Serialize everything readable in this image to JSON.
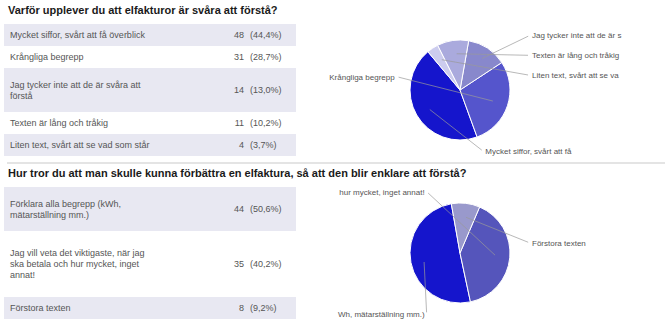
{
  "chart_data": [
    {
      "type": "pie",
      "title": "Varför upplever du att elfakturor är svåra att förstå?",
      "categories": [
        "Mycket siffor, svårt att få överblick",
        "Krångliga begrepp",
        "Jag tycker inte att de är svåra att\nförstå",
        "Texten är lång och tråkig",
        "Liten text, svårt att se vad som står"
      ],
      "values": [
        48,
        31,
        14,
        11,
        4
      ],
      "percents": [
        44.4,
        28.7,
        13.0,
        10.2,
        3.7
      ],
      "percent_labels": [
        "(44,4%)",
        "(28,7%)",
        "(13,0%)",
        "(10,2%)",
        "(3,7%)"
      ],
      "annotations": [
        "Mycket siffor, svårt att få",
        "Krångliga begrepp",
        "Jag tycker inte att de är s",
        "Texten är lång och tråkig",
        "Liten text, svårt att se va"
      ],
      "colors": [
        "#1515cc",
        "#5555cc",
        "#8888cc",
        "#aaaadd",
        "#ccccee"
      ]
    },
    {
      "type": "pie",
      "title": "Hur tror du att man skulle kunna förbättra en elfaktura, så att den blir enklare att förstå?",
      "categories": [
        "Förklara alla begrepp (kWh,\nmätarställning mm.)",
        "Jag vill veta det viktigaste, när jag\nska betala och hur mycket, inget\nannat!",
        "Förstora texten"
      ],
      "values": [
        44,
        35,
        8
      ],
      "percents": [
        50.6,
        40.2,
        9.2
      ],
      "percent_labels": [
        "(50,6%)",
        "(40,2%)",
        "(9,2%)"
      ],
      "annotations": [
        "Wh, mätarställning mm.)",
        "hur mycket, inget annat!",
        "Förstora texten"
      ],
      "colors": [
        "#1515cc",
        "#5555bb",
        "#9999cc"
      ]
    }
  ]
}
